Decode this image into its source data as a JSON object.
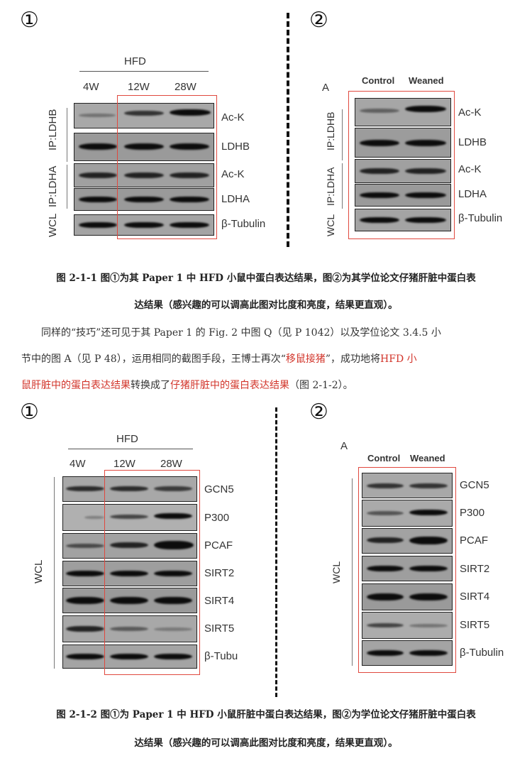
{
  "fig1": {
    "left_marker": "①",
    "right_marker": "②",
    "left": {
      "group_label": "HFD",
      "lanes": [
        "4W",
        "12W",
        "28W"
      ],
      "side_labels": [
        "WCL",
        "IP:LDHA",
        "IP:LDHB"
      ],
      "rows": [
        "Ac-K",
        "LDHB",
        "Ac-K",
        "LDHA",
        "β-Tubulin"
      ]
    },
    "right": {
      "panel_letter": "A",
      "lanes": [
        "Control",
        "Weaned"
      ],
      "side_labels": [
        "WCL",
        "IP:LDHA",
        "IP:LDHB"
      ],
      "rows": [
        "Ac-K",
        "LDHB",
        "Ac-K",
        "LDHA",
        "β-Tubulin"
      ]
    },
    "caption_line1": "图 2-1-1 图①为其 Paper 1 中 HFD 小鼠中蛋白表达结果，图②为其学位论文仔猪肝脏中蛋白表",
    "caption_line2": "达结果（感兴趣的可以调高此图对比度和亮度，结果更直观）。"
  },
  "paragraph": {
    "line1": "同样的“技巧”还可见于其 Paper 1 的 Fig. 2 中图 Q（见 P 1042）以及学位论文 3.4.5 小",
    "line2_a": "节中的图 A（见 P 48），运用相同的截图手段，王博士再次“",
    "line2_red": "移鼠接猪",
    "line2_b": "”，成功地将",
    "line2_red2": "HFD 小",
    "line3_red": "鼠肝脏中的蛋白表达结果",
    "line3_a": "转换成了",
    "line3_red2": "仔猪肝脏中的蛋白表达结果",
    "line3_b": "（图 2-1-2）。"
  },
  "fig2": {
    "left_marker": "①",
    "right_marker": "②",
    "left": {
      "group_label": "HFD",
      "lanes": [
        "4W",
        "12W",
        "28W"
      ],
      "side_label": "WCL",
      "rows": [
        "GCN5",
        "P300",
        "PCAF",
        "SIRT2",
        "SIRT4",
        "SIRT5",
        "β-Tubu"
      ]
    },
    "right": {
      "panel_letter": "A",
      "lanes": [
        "Control",
        "Weaned"
      ],
      "side_label": "WCL",
      "rows": [
        "GCN5",
        "P300",
        "PCAF",
        "SIRT2",
        "SIRT4",
        "SIRT5",
        "β-Tubulin"
      ]
    },
    "caption_line1": "图 2-1-2 图①为 Paper 1 中 HFD 小鼠肝脏中蛋白表达结果，图②为学位论文仔猪肝脏中蛋白表",
    "caption_line2": "达结果（感兴趣的可以调高此图对比度和亮度，结果更直观）。"
  },
  "colors": {
    "accent_red": "#d2342a",
    "box_red": "#e0483e"
  }
}
